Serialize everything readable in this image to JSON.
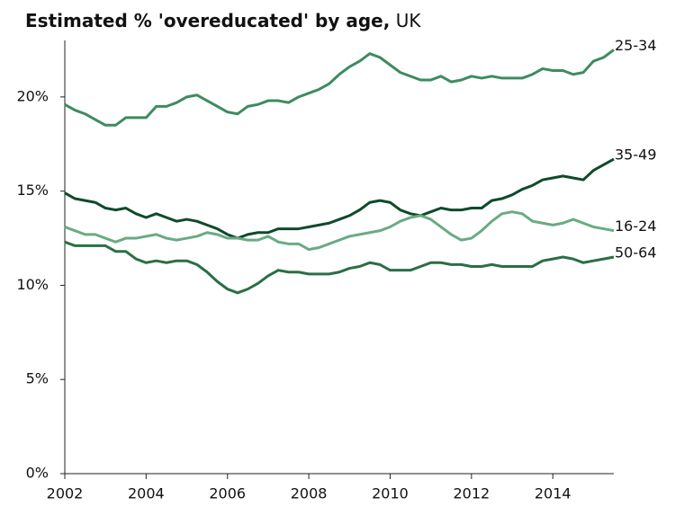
{
  "chart_data": {
    "type": "line",
    "title": "Estimated % 'overeducated' by age,",
    "subtitle": "UK",
    "x": [
      2002,
      2002.25,
      2002.5,
      2002.75,
      2003,
      2003.25,
      2003.5,
      2003.75,
      2004,
      2004.25,
      2004.5,
      2004.75,
      2005,
      2005.25,
      2005.5,
      2005.75,
      2006,
      2006.25,
      2006.5,
      2006.75,
      2007,
      2007.25,
      2007.5,
      2007.75,
      2008,
      2008.25,
      2008.5,
      2008.75,
      2009,
      2009.25,
      2009.5,
      2009.75,
      2010,
      2010.25,
      2010.5,
      2010.75,
      2011,
      2011.25,
      2011.5,
      2011.75,
      2012,
      2012.25,
      2012.5,
      2012.75,
      2013,
      2013.25,
      2013.5,
      2013.75,
      2014,
      2014.25,
      2014.5,
      2014.75,
      2015,
      2015.25,
      2015.5
    ],
    "series": [
      {
        "name": "25-34",
        "color": "#3e8b60",
        "values": [
          19.6,
          19.3,
          19.1,
          18.8,
          18.5,
          18.5,
          18.9,
          18.9,
          18.9,
          19.5,
          19.5,
          19.7,
          20.0,
          20.1,
          19.8,
          19.5,
          19.2,
          19.1,
          19.5,
          19.6,
          19.8,
          19.8,
          19.7,
          20.0,
          20.2,
          20.4,
          20.7,
          21.2,
          21.6,
          21.9,
          22.3,
          22.1,
          21.7,
          21.3,
          21.1,
          20.9,
          20.9,
          21.1,
          20.8,
          20.9,
          21.1,
          21.0,
          21.1,
          21.0,
          21.0,
          21.0,
          21.2,
          21.5,
          21.4,
          21.4,
          21.2,
          21.3,
          21.9,
          22.1,
          22.5
        ]
      },
      {
        "name": "35-49",
        "color": "#0f4a2b",
        "values": [
          14.9,
          14.6,
          14.5,
          14.4,
          14.1,
          14.0,
          14.1,
          13.8,
          13.6,
          13.8,
          13.6,
          13.4,
          13.5,
          13.4,
          13.2,
          13.0,
          12.7,
          12.5,
          12.7,
          12.8,
          12.8,
          13.0,
          13.0,
          13.0,
          13.1,
          13.2,
          13.3,
          13.5,
          13.7,
          14.0,
          14.4,
          14.5,
          14.4,
          14.0,
          13.8,
          13.7,
          13.9,
          14.1,
          14.0,
          14.0,
          14.1,
          14.1,
          14.5,
          14.6,
          14.8,
          15.1,
          15.3,
          15.6,
          15.7,
          15.8,
          15.7,
          15.6,
          16.1,
          16.4,
          16.7
        ]
      },
      {
        "name": "16-24",
        "color": "#6aaa84",
        "values": [
          13.1,
          12.9,
          12.7,
          12.7,
          12.5,
          12.3,
          12.5,
          12.5,
          12.6,
          12.7,
          12.5,
          12.4,
          12.5,
          12.6,
          12.8,
          12.7,
          12.5,
          12.5,
          12.4,
          12.4,
          12.6,
          12.3,
          12.2,
          12.2,
          11.9,
          12.0,
          12.2,
          12.4,
          12.6,
          12.7,
          12.8,
          12.9,
          13.1,
          13.4,
          13.6,
          13.7,
          13.5,
          13.1,
          12.7,
          12.4,
          12.5,
          12.9,
          13.4,
          13.8,
          13.9,
          13.8,
          13.4,
          13.3,
          13.2,
          13.3,
          13.5,
          13.3,
          13.1,
          13.0,
          12.9
        ]
      },
      {
        "name": "50-64",
        "color": "#2a6f45",
        "values": [
          12.3,
          12.1,
          12.1,
          12.1,
          12.1,
          11.8,
          11.8,
          11.4,
          11.2,
          11.3,
          11.2,
          11.3,
          11.3,
          11.1,
          10.7,
          10.2,
          9.8,
          9.6,
          9.8,
          10.1,
          10.5,
          10.8,
          10.7,
          10.7,
          10.6,
          10.6,
          10.6,
          10.7,
          10.9,
          11.0,
          11.2,
          11.1,
          10.8,
          10.8,
          10.8,
          11.0,
          11.2,
          11.2,
          11.1,
          11.1,
          11.0,
          11.0,
          11.1,
          11.0,
          11.0,
          11.0,
          11.0,
          11.3,
          11.4,
          11.5,
          11.4,
          11.2,
          11.3,
          11.4,
          11.5
        ]
      }
    ],
    "xlim": [
      2002,
      2015.5
    ],
    "xticks": [
      2002,
      2004,
      2006,
      2008,
      2010,
      2012,
      2014
    ],
    "ylim": [
      0,
      23
    ],
    "yticks": [
      {
        "value": 0,
        "label": "0%"
      },
      {
        "value": 5,
        "label": "5%"
      },
      {
        "value": 10,
        "label": "10%"
      },
      {
        "value": 15,
        "label": "15%"
      },
      {
        "value": 20,
        "label": "20%"
      }
    ],
    "grid": false
  }
}
